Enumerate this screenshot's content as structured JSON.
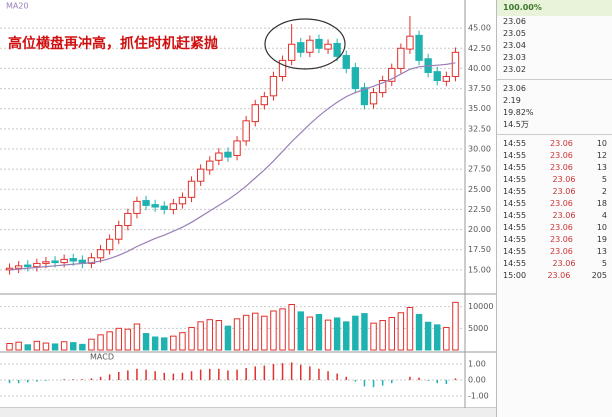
{
  "chart_data": [
    {
      "type": "candlestick",
      "title": "高位横盘再冲高，抓住时机赶紧抛",
      "open": [
        15.0,
        15.2,
        15.6,
        15.4,
        15.8,
        16.1,
        15.9,
        16.4,
        16.2,
        15.8,
        16.5,
        17.5,
        18.8,
        20.5,
        22.0,
        23.6,
        23.1,
        22.9,
        22.5,
        23.2,
        24.0,
        26.0,
        27.4,
        28.6,
        29.6,
        29.2,
        31.0,
        33.4,
        35.5,
        36.6,
        39.0,
        41.0,
        43.2,
        42.0,
        43.6,
        42.4,
        43.1,
        41.6,
        40.1,
        37.6,
        35.6,
        37.0,
        38.4,
        40.0,
        42.4,
        44.1,
        41.2,
        39.6,
        38.4,
        39.0
      ],
      "high": [
        15.8,
        16.1,
        16.2,
        16.4,
        16.6,
        16.7,
        16.9,
        17.0,
        16.8,
        17.1,
        18.1,
        19.4,
        21.1,
        22.6,
        24.1,
        24.2,
        23.7,
        23.5,
        23.8,
        24.6,
        26.6,
        28.1,
        29.1,
        30.1,
        30.2,
        31.6,
        34.1,
        36.1,
        37.1,
        39.6,
        41.6,
        45.5,
        43.8,
        44.1,
        44.2,
        43.6,
        43.7,
        42.2,
        40.7,
        38.2,
        37.6,
        39.1,
        40.6,
        43.1,
        46.5,
        44.7,
        41.8,
        40.2,
        39.6,
        42.6
      ],
      "low": [
        14.4,
        14.6,
        14.8,
        14.8,
        15.2,
        15.3,
        15.3,
        15.5,
        15.2,
        15.2,
        15.9,
        16.9,
        18.2,
        19.9,
        21.4,
        22.4,
        22.2,
        21.9,
        21.9,
        22.6,
        23.4,
        25.4,
        26.8,
        28.0,
        28.4,
        28.6,
        30.4,
        32.8,
        34.9,
        36.0,
        38.4,
        40.4,
        41.4,
        41.4,
        41.9,
        41.8,
        40.9,
        39.4,
        36.9,
        34.9,
        35.0,
        36.4,
        37.8,
        39.4,
        41.8,
        40.4,
        38.9,
        37.9,
        37.8,
        38.4
      ],
      "close": [
        15.2,
        15.5,
        15.4,
        15.8,
        16.0,
        15.9,
        16.3,
        16.1,
        15.8,
        16.5,
        17.5,
        18.8,
        20.5,
        22.0,
        23.5,
        23.0,
        22.8,
        22.5,
        23.2,
        24.0,
        26.0,
        27.5,
        28.5,
        29.5,
        29.0,
        31.0,
        33.5,
        35.5,
        36.5,
        39.0,
        41.0,
        43.0,
        42.0,
        43.5,
        42.5,
        43.0,
        41.5,
        40.0,
        37.5,
        35.5,
        37.0,
        38.5,
        40.0,
        42.5,
        44.0,
        41.0,
        39.5,
        38.5,
        39.0,
        42.0
      ],
      "ma": {
        "name": "MA20",
        "color": "#9a7fb8",
        "values": [
          15.0,
          15.1,
          15.2,
          15.3,
          15.4,
          15.5,
          15.6,
          15.7,
          15.8,
          15.9,
          16.1,
          16.4,
          16.8,
          17.3,
          17.9,
          18.4,
          18.9,
          19.3,
          19.8,
          20.3,
          20.9,
          21.6,
          22.3,
          23.0,
          23.7,
          24.5,
          25.4,
          26.4,
          27.4,
          28.5,
          29.7,
          30.9,
          32.0,
          33.1,
          34.1,
          35.0,
          35.8,
          36.5,
          37.0,
          37.4,
          37.8,
          38.2,
          38.7,
          39.3,
          39.9,
          40.2,
          40.3,
          40.4,
          40.5,
          40.7
        ]
      },
      "up_color": "#e2302c",
      "down_color": "#1fb3b0",
      "grid": true,
      "ylim": [
        12.5,
        47.5
      ],
      "yticks": [
        {
          "value": 15,
          "label": "15.00"
        },
        {
          "value": 17.5,
          "label": "17.50"
        },
        {
          "value": 20,
          "label": "20.00"
        },
        {
          "value": 22.5,
          "label": "22.50"
        },
        {
          "value": 25,
          "label": "25.00"
        },
        {
          "value": 27.5,
          "label": "27.50"
        },
        {
          "value": 30,
          "label": "30.00"
        },
        {
          "value": 32.5,
          "label": "32.50"
        },
        {
          "value": 35,
          "label": "35.00"
        },
        {
          "value": 37.5,
          "label": "37.50"
        },
        {
          "value": 40,
          "label": "40.00"
        },
        {
          "value": 42.5,
          "label": "42.50"
        },
        {
          "value": 45,
          "label": "45.00"
        }
      ]
    },
    {
      "type": "bar",
      "values": [
        1500,
        1800,
        1200,
        2000,
        1600,
        1400,
        1900,
        1700,
        1300,
        2500,
        3500,
        4200,
        5000,
        4800,
        6000,
        3800,
        3000,
        2800,
        3200,
        4000,
        5200,
        6500,
        7000,
        6800,
        5500,
        7200,
        8000,
        8500,
        7800,
        9000,
        9500,
        10500,
        8800,
        7600,
        8200,
        6900,
        7400,
        6500,
        7800,
        8400,
        6200,
        6800,
        7500,
        8600,
        9800,
        8200,
        6400,
        5800,
        5200,
        11000
      ],
      "ylim": [
        0,
        12000
      ],
      "yticks": [
        5000,
        10000
      ]
    },
    {
      "type": "bar",
      "title": "MACD",
      "values": [
        -0.2,
        -0.2,
        -0.15,
        -0.1,
        -0.05,
        0,
        0.05,
        0.05,
        0.05,
        0.1,
        0.2,
        0.35,
        0.5,
        0.6,
        0.7,
        0.65,
        0.55,
        0.45,
        0.4,
        0.45,
        0.55,
        0.65,
        0.7,
        0.7,
        0.6,
        0.65,
        0.75,
        0.85,
        0.9,
        1.0,
        1.05,
        1.1,
        0.95,
        0.85,
        0.7,
        0.55,
        0.4,
        0.2,
        -0.1,
        -0.4,
        -0.45,
        -0.35,
        -0.2,
        0,
        0.2,
        0.15,
        -0.05,
        -0.2,
        -0.25,
        0.1
      ],
      "ylim": [
        -1.5,
        1.5
      ],
      "yticks": [
        {
          "value": -1,
          "label": "-1.00"
        },
        {
          "value": 0,
          "label": "0.00"
        },
        {
          "value": 1,
          "label": "1.00"
        }
      ]
    }
  ],
  "quote_panel": {
    "percent": "100.00%",
    "book": [
      "23.06",
      "23.05",
      "23.04",
      "23.03",
      "23.02"
    ],
    "stats": [
      "23.06",
      "2.19",
      "19.82%",
      "14.5万"
    ],
    "trades": [
      [
        "14:55",
        "23.06",
        "10"
      ],
      [
        "14:55",
        "23.06",
        "12"
      ],
      [
        "14:55",
        "23.06",
        "13"
      ],
      [
        "14:55",
        "23.06",
        "5"
      ],
      [
        "14:55",
        "23.06",
        "2"
      ],
      [
        "14:55",
        "23.06",
        "18"
      ],
      [
        "14:55",
        "23.06",
        "4"
      ],
      [
        "14:55",
        "23.06",
        "10"
      ],
      [
        "14:55",
        "23.06",
        "19"
      ],
      [
        "14:55",
        "23.06",
        "13"
      ],
      [
        "14:55",
        "23.06",
        "5"
      ],
      [
        "15:00",
        "23.06",
        "205"
      ]
    ]
  }
}
